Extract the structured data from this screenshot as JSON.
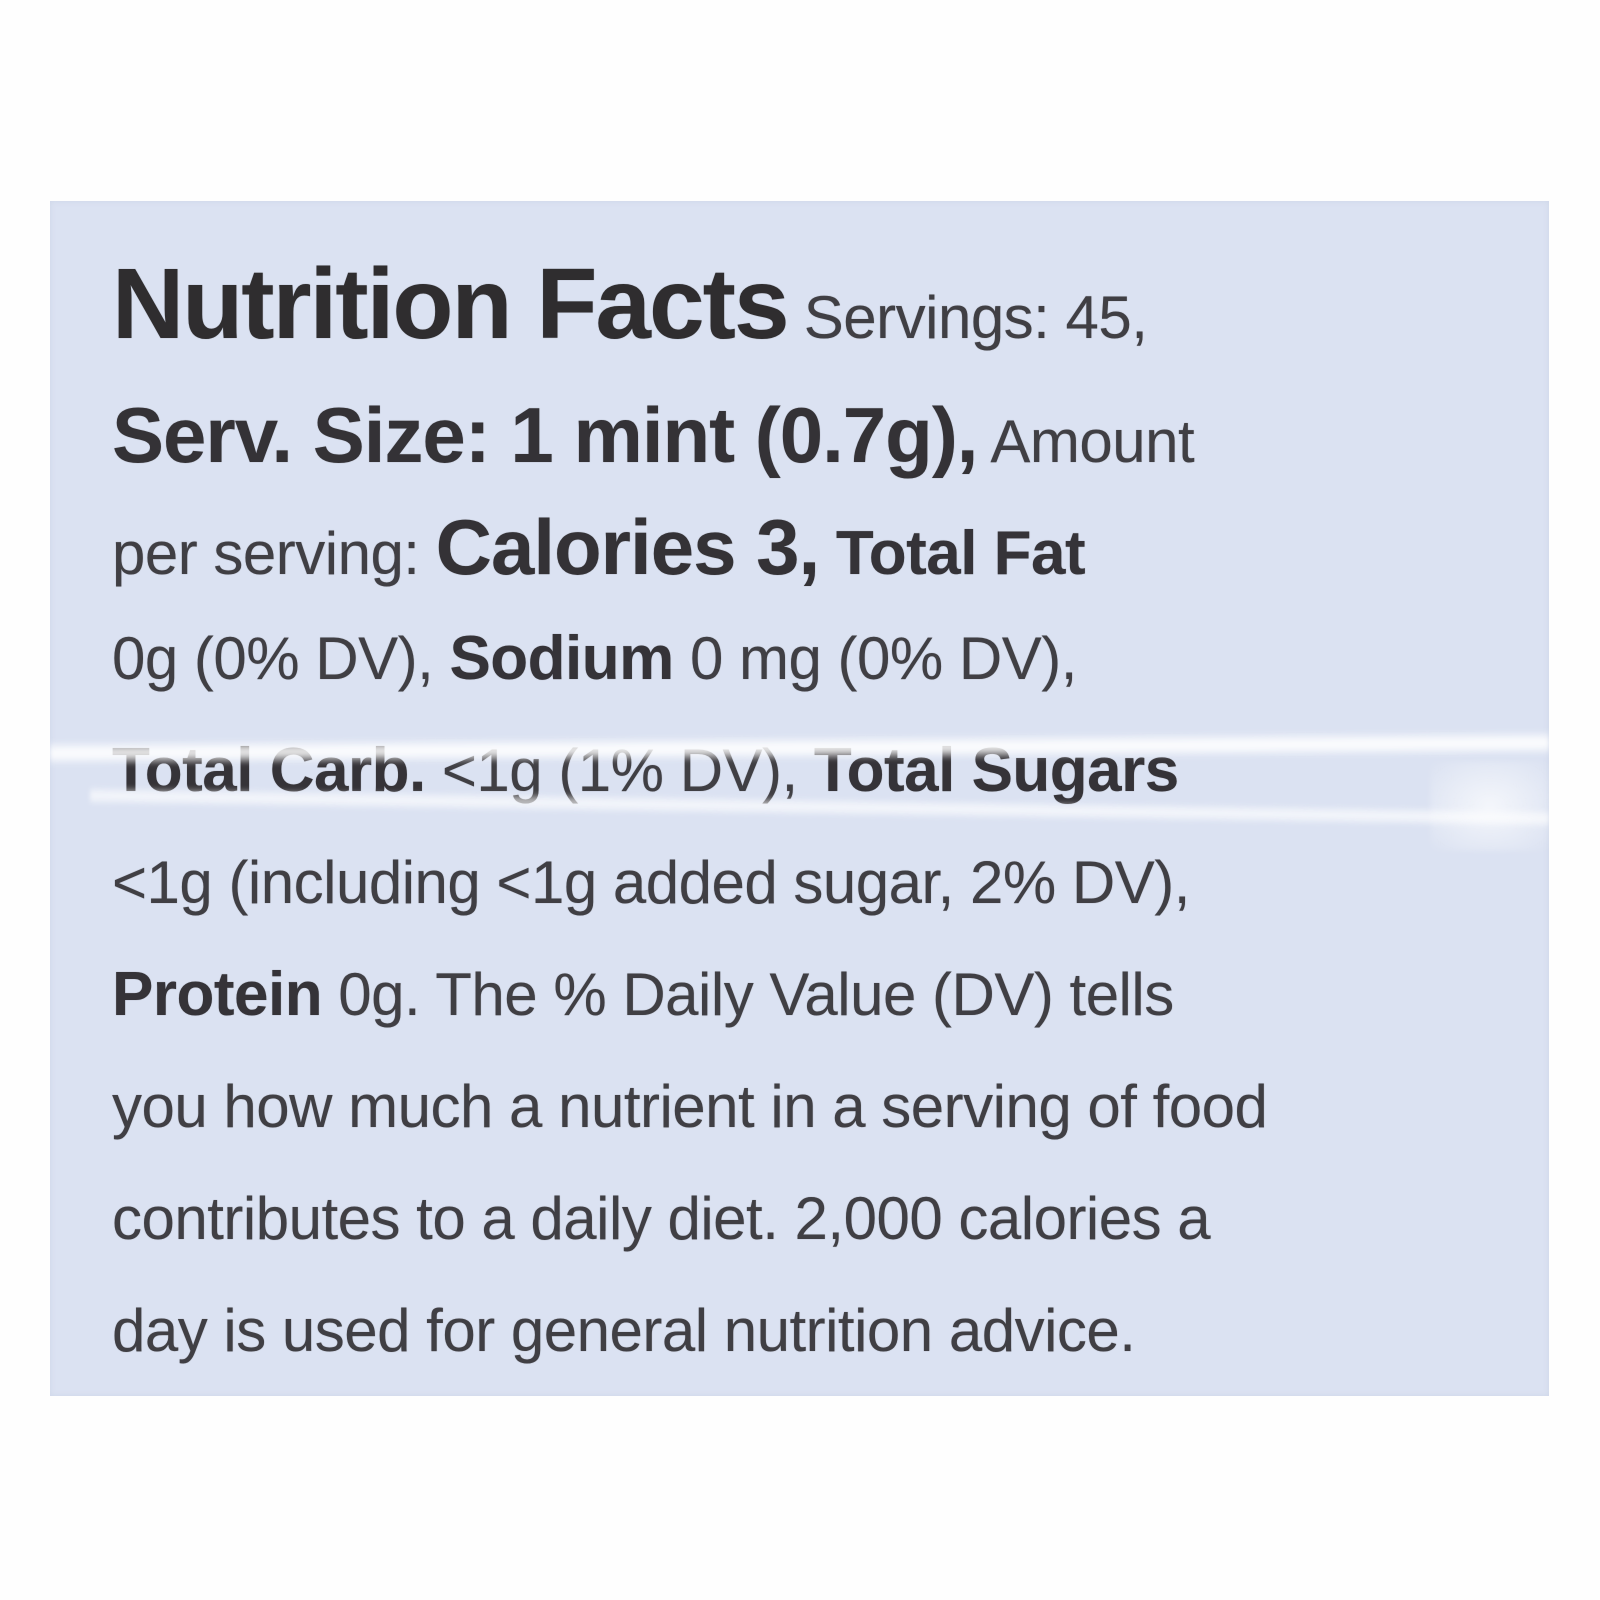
{
  "label": {
    "background_color": "#dbe2f2",
    "text_color": "#3b3a3e",
    "lines": [
      {
        "segments": [
          {
            "text": "Nutrition Facts",
            "style": "title"
          },
          {
            "text": " Servings: 45,",
            "style": "md"
          }
        ]
      },
      {
        "segments": [
          {
            "text": "Serv. Size: 1 mint (0.7g),",
            "style": "big"
          },
          {
            "text": " Amount",
            "style": "md"
          }
        ]
      },
      {
        "segments": [
          {
            "text": "per serving: ",
            "style": "md"
          },
          {
            "text": "Calories 3,",
            "style": "big"
          },
          {
            "text": " Total Fat",
            "style": "mdb"
          }
        ]
      },
      {
        "segments": [
          {
            "text": "0g (0% DV), ",
            "style": "md"
          },
          {
            "text": "Sodium",
            "style": "mdb"
          },
          {
            "text": " 0 mg (0% DV),",
            "style": "md"
          }
        ]
      },
      {
        "segments": [
          {
            "text": "Total Carb.",
            "style": "mdb"
          },
          {
            "text": " <1g (1% DV), ",
            "style": "md"
          },
          {
            "text": "Total Sugars",
            "style": "mdb"
          }
        ]
      },
      {
        "segments": [
          {
            "text": "<1g (including <1g added sugar, 2% DV),",
            "style": "md"
          }
        ]
      },
      {
        "segments": [
          {
            "text": "Protein",
            "style": "mdb"
          },
          {
            "text": " 0g. The % Daily Value (DV) tells",
            "style": "md"
          }
        ]
      },
      {
        "segments": [
          {
            "text": "you how much a nutrient in a serving of food",
            "style": "md"
          }
        ]
      },
      {
        "segments": [
          {
            "text": "contributes to a daily diet. 2,000 calories a",
            "style": "md"
          }
        ]
      },
      {
        "segments": [
          {
            "text": "day is used for general nutrition advice.",
            "style": "md"
          }
        ]
      }
    ]
  }
}
